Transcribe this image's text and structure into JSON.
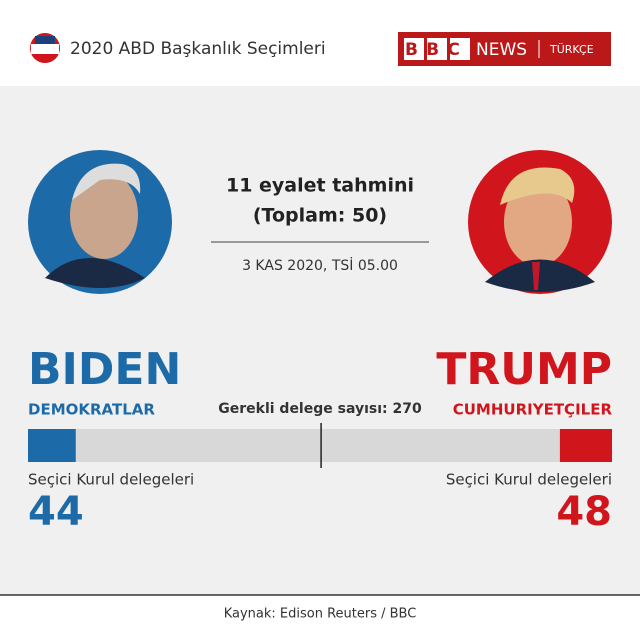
{
  "header": {
    "year": "2020",
    "title": "ABD Başkanlık Seçimleri",
    "brand": "BBC",
    "brand_news": "NEWS",
    "brand_lang": "TÜRKÇE"
  },
  "summary": {
    "line1": "11 eyalet tahmini",
    "line2": "(Toplam: 50)",
    "date": "3 KAS 2020, TSİ 05.00"
  },
  "chart_data": {
    "type": "bar",
    "xlim": [
      0,
      538
    ],
    "threshold_label": "Gerekli delege sayısı:",
    "threshold": 270,
    "value_label": "Seçici Kurul delegeleri",
    "series": [
      {
        "name": "BIDEN",
        "party": "DEMOKRATLAR",
        "color": "#1d6aa8",
        "values": [
          44
        ]
      },
      {
        "name": "TRUMP",
        "party": "CUMHURIYETÇILER",
        "color": "#d0161c",
        "values": [
          48
        ]
      }
    ]
  },
  "footer": "Kaynak: Edison Reuters / BBC"
}
